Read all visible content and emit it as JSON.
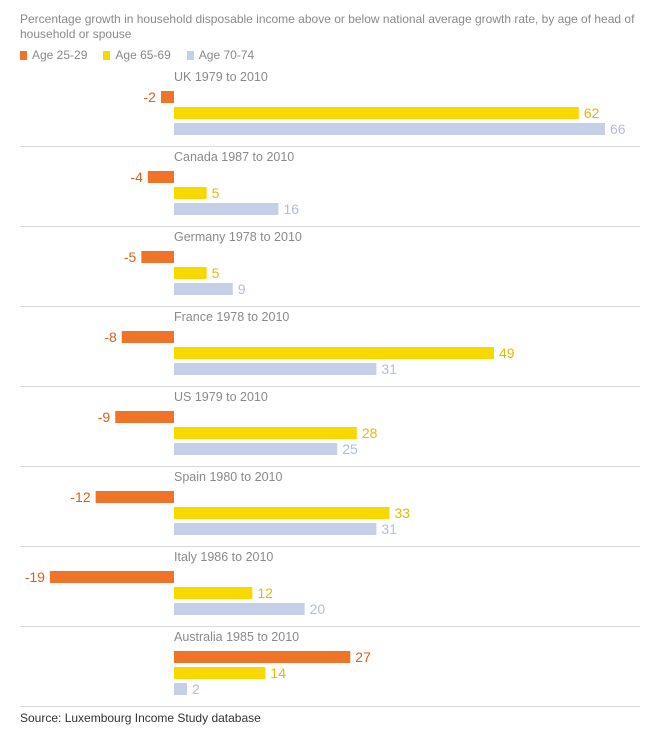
{
  "header": {
    "subtitle": "Percentage growth in household disposable income above or below national average growth rate, by age of head of household or spouse"
  },
  "legend": [
    {
      "label": "Age 25-29",
      "color": "#f07427"
    },
    {
      "label": "Age 65-69",
      "color": "#f7d900"
    },
    {
      "label": "Age 70-74",
      "color": "#c5cfe6"
    }
  ],
  "footer": {
    "source": "Source: Luxembourg Income Study database"
  },
  "chart_data": {
    "type": "bar",
    "orientation": "horizontal",
    "title": "",
    "xlabel": "",
    "ylabel": "",
    "grid": false,
    "legend_position": "top-left",
    "categories": [
      "UK 1979 to 2010",
      "Canada 1987 to 2010",
      "Germany 1978 to 2010",
      "France 1978 to 2010",
      "US 1979 to 2010",
      "Spain 1980 to 2010",
      "Italy 1986 to 2010",
      "Australia 1985 to 2010"
    ],
    "series": [
      {
        "name": "Age 25-29",
        "color": "#f07427",
        "label_color": "#d8601a",
        "values": [
          -2,
          -4,
          -5,
          -8,
          -9,
          -12,
          -19,
          27
        ]
      },
      {
        "name": "Age 65-69",
        "color": "#f7d900",
        "label_color": "#e0bd00",
        "values": [
          62,
          5,
          5,
          49,
          28,
          33,
          12,
          14
        ]
      },
      {
        "name": "Age 70-74",
        "color": "#c5cfe6",
        "label_color": "#b2bdd8",
        "values": [
          66,
          16,
          9,
          31,
          25,
          31,
          20,
          2
        ]
      }
    ]
  }
}
